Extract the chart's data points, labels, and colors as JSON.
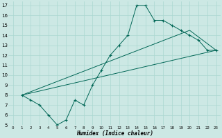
{
  "xlabel": "Humidex (Indice chaleur)",
  "background_color": "#cce8e4",
  "line_color": "#006655",
  "grid_color": "#aad8d0",
  "xlim": [
    -0.5,
    23.5
  ],
  "ylim": [
    5,
    17.4
  ],
  "xticks": [
    0,
    1,
    2,
    3,
    4,
    5,
    6,
    7,
    8,
    9,
    10,
    11,
    12,
    13,
    14,
    15,
    16,
    17,
    18,
    19,
    20,
    21,
    22,
    23
  ],
  "yticks": [
    5,
    6,
    7,
    8,
    9,
    10,
    11,
    12,
    13,
    14,
    15,
    16,
    17
  ],
  "line1_x": [
    1,
    2,
    3,
    4,
    5,
    6,
    7,
    8,
    9,
    10,
    11,
    12,
    13,
    14,
    15,
    16,
    17,
    18,
    19,
    20,
    21,
    22,
    23
  ],
  "line1_y": [
    8.0,
    7.5,
    7.0,
    6.0,
    5.0,
    5.5,
    7.5,
    7.0,
    9.0,
    10.5,
    12.0,
    13.0,
    14.0,
    17.0,
    17.0,
    15.5,
    15.5,
    15.0,
    14.5,
    14.0,
    13.5,
    12.5,
    12.5
  ],
  "line2_x": [
    1,
    23
  ],
  "line2_y": [
    8.0,
    12.5
  ],
  "line3_x": [
    1,
    20,
    23
  ],
  "line3_y": [
    8.0,
    14.5,
    12.5
  ]
}
